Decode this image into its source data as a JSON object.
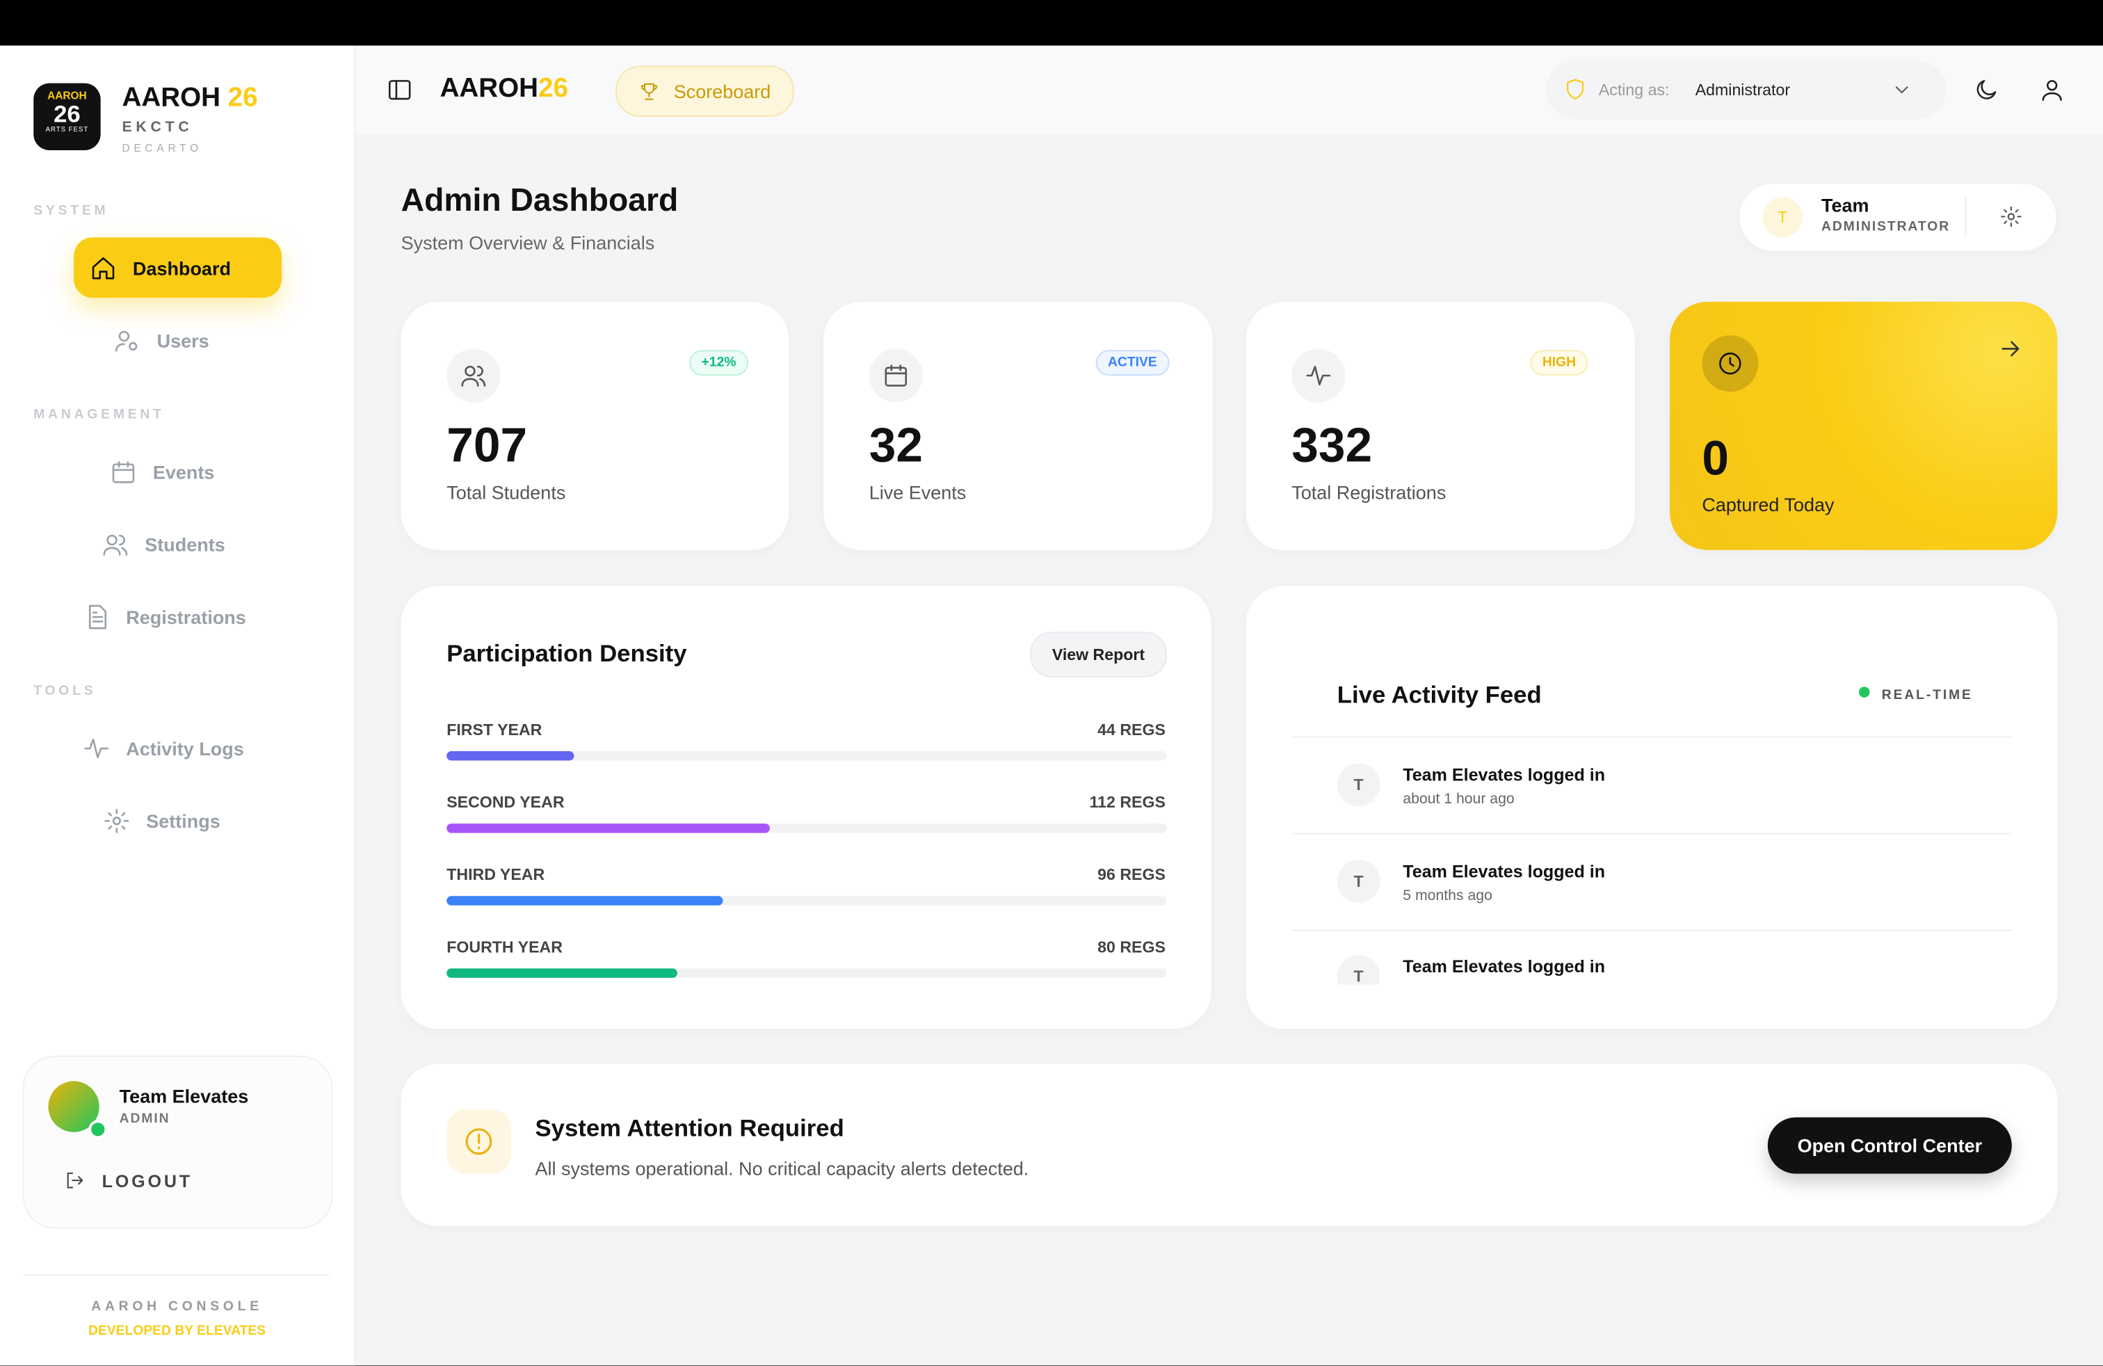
{
  "sidebar": {
    "logo": {
      "badge_top": "AAROH",
      "badge_number": "26",
      "badge_bottom": "ARTS FEST",
      "name": "AAROH",
      "name_accent": "26",
      "sub1": "EKCTC",
      "sub2": "DECARTO"
    },
    "sections": [
      {
        "title": "SYSTEM",
        "items": [
          "Dashboard",
          "Users"
        ]
      },
      {
        "title": "MANAGEMENT",
        "items": [
          "Events",
          "Students",
          "Registrations"
        ]
      },
      {
        "title": "TOOLS",
        "items": [
          "Activity Logs",
          "Settings"
        ]
      }
    ],
    "user": {
      "name": "Team Elevates",
      "role": "ADMIN",
      "logout": "LOGOUT"
    },
    "footer": {
      "line1": "AAROH CONSOLE",
      "line2": "DEVELOPED BY ELEVATES"
    }
  },
  "topbar": {
    "brand": "AAROH",
    "brand_accent": "26",
    "scoreboard": "Scoreboard",
    "acting_label": "Acting as:",
    "acting_value": "Administrator"
  },
  "header": {
    "title": "Admin Dashboard",
    "subtitle": "System Overview & Financials",
    "team_initial": "T",
    "team_name": "Team",
    "team_role": "ADMINISTRATOR"
  },
  "stats": [
    {
      "badge": "+12%",
      "value": 707,
      "label": "Total Students"
    },
    {
      "badge": "ACTIVE",
      "value": 32,
      "label": "Live Events"
    },
    {
      "badge": "HIGH",
      "value": 332,
      "label": "Total Registrations"
    },
    {
      "value": 0,
      "label": "Captured Today"
    }
  ],
  "participation": {
    "title": "Participation Density",
    "button": "View Report",
    "rows": [
      {
        "label": "FIRST YEAR",
        "value": 44,
        "value_label": "44 REGS"
      },
      {
        "label": "SECOND YEAR",
        "value": 112,
        "value_label": "112 REGS"
      },
      {
        "label": "THIRD YEAR",
        "value": 96,
        "value_label": "96 REGS"
      },
      {
        "label": "FOURTH YEAR",
        "value": 80,
        "value_label": "80 REGS"
      }
    ]
  },
  "activity": {
    "title": "Live Activity Feed",
    "status": "REAL-TIME",
    "items": [
      {
        "initial": "T",
        "text": "Team Elevates logged in",
        "time": "about 1 hour ago"
      },
      {
        "initial": "T",
        "text": "Team Elevates logged in",
        "time": "5 months ago"
      },
      {
        "initial": "T",
        "text": "Team Elevates logged in"
      }
    ]
  },
  "alert": {
    "title": "System Attention Required",
    "message": "All systems operational. No critical capacity alerts detected.",
    "button": "Open Control Center"
  }
}
